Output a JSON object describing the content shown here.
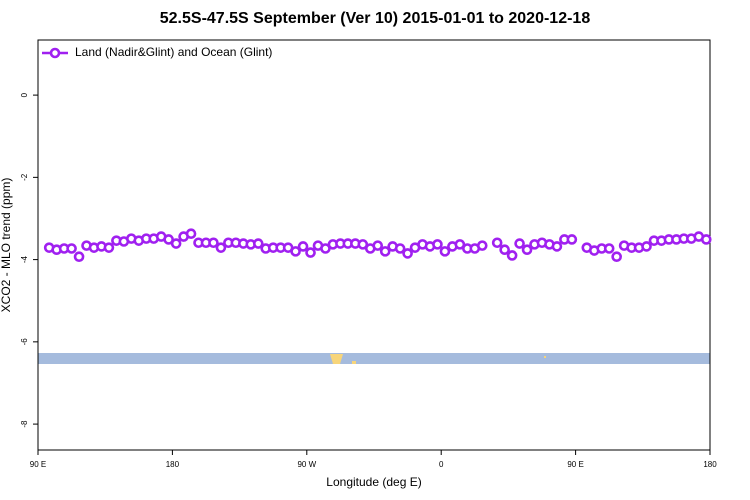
{
  "chart_data": {
    "type": "scatter",
    "title": "52.5S-47.5S September (Ver 10)   2015-01-01 to 2020-12-18",
    "xlabel": "Longitude (deg E)",
    "ylabel": "XCO2 - MLO trend (ppm)",
    "xlim": [
      90,
      540
    ],
    "ylim": [
      -8.63,
      1.34
    ],
    "xticks": [
      {
        "value": 90,
        "label": "90 E"
      },
      180,
      {
        "value": 270,
        "label": "90 W"
      },
      {
        "value": 360,
        "label": "0"
      },
      {
        "value": 450,
        "label": "90 E"
      },
      {
        "value": 540,
        "label": "180"
      }
    ],
    "yticks": [
      0,
      -2,
      -4,
      -6,
      -8
    ],
    "legend": "top-left",
    "series": [
      {
        "name": "Land (Nadir&Glint) and Ocean (Glint)",
        "color": "#a020f0",
        "x": [
          97.5,
          102.5,
          107.5,
          112.5,
          117.5,
          122.5,
          127.5,
          132.5,
          137.5,
          142.5,
          147.5,
          152.5,
          157.5,
          162.5,
          167.5,
          172.5,
          177.5,
          182.5,
          187.5,
          192.5,
          197.5,
          202.5,
          207.5,
          212.5,
          217.5,
          222.5,
          227.5,
          232.5,
          237.5,
          242.5,
          247.5,
          252.5,
          257.5,
          262.5,
          267.5,
          272.5,
          277.5,
          282.5,
          287.5,
          292.5,
          297.5,
          302.5,
          307.5,
          312.5,
          317.5,
          322.5,
          327.5,
          332.5,
          337.5,
          342.5,
          347.5,
          352.5,
          357.5,
          362.5,
          367.5,
          372.5,
          377.5,
          382.5,
          387.5,
          392.5,
          397.5,
          402.5,
          407.5,
          412.5,
          417.5,
          422.5,
          427.5,
          432.5,
          437.5,
          442.5,
          447.5,
          452.5,
          457.5,
          462.5,
          467.5,
          472.5,
          477.5,
          482.5,
          487.5,
          492.5,
          497.5,
          502.5,
          507.5,
          512.5,
          517.5,
          522.5,
          527.5,
          532.5,
          537.5
        ],
        "values": [
          -3.71,
          -3.76,
          -3.73,
          -3.73,
          -3.93,
          -3.66,
          -3.71,
          -3.68,
          -3.71,
          -3.54,
          -3.56,
          -3.49,
          -3.54,
          -3.49,
          -3.49,
          -3.44,
          -3.51,
          -3.61,
          -3.44,
          -3.37,
          -3.59,
          -3.59,
          -3.59,
          -3.71,
          -3.59,
          -3.59,
          -3.61,
          -3.63,
          -3.61,
          -3.73,
          -3.71,
          -3.71,
          -3.71,
          -3.8,
          -3.68,
          -3.83,
          -3.66,
          -3.73,
          -3.63,
          -3.61,
          -3.61,
          -3.61,
          -3.63,
          -3.73,
          -3.66,
          -3.8,
          -3.68,
          -3.73,
          -3.85,
          -3.71,
          -3.63,
          -3.68,
          -3.63,
          -3.8,
          -3.68,
          -3.63,
          -3.73,
          -3.73,
          -3.66,
          null,
          -3.59,
          -3.76,
          -3.9,
          -3.61,
          -3.76,
          -3.63,
          -3.59,
          -3.63,
          -3.68,
          -3.51,
          -3.51,
          null,
          -3.71,
          -3.78,
          -3.73,
          -3.73,
          -3.93,
          -3.66,
          -3.71,
          -3.71,
          -3.68,
          -3.54,
          -3.54,
          -3.51,
          -3.51,
          -3.49,
          -3.49,
          -3.44,
          -3.51
        ]
      }
    ]
  }
}
